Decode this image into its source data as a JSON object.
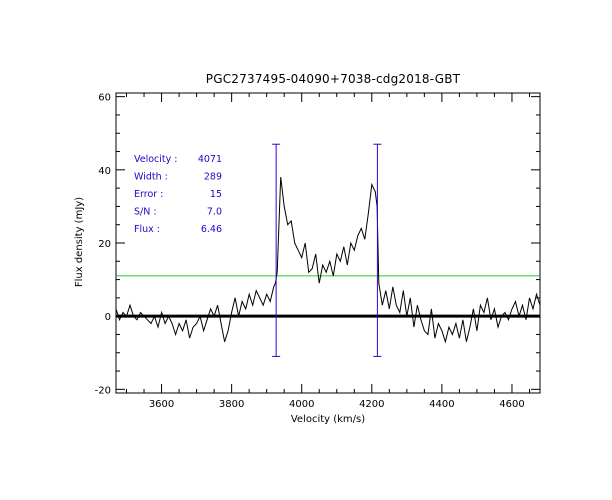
{
  "chart_data": {
    "type": "line",
    "title": "PGC2737495-04090+7038-cdg2018-GBT",
    "xlabel": "Velocity (km/s)",
    "ylabel": "Flux density (mJy)",
    "xlim": [
      3470,
      4680
    ],
    "ylim": [
      -21,
      61
    ],
    "xticks": [
      3600,
      3800,
      4000,
      4200,
      4400,
      4600
    ],
    "yticks": [
      -20,
      0,
      20,
      40,
      60
    ],
    "baseline": 0,
    "threshold_line": {
      "y": 11,
      "color": "#22cc22"
    },
    "markers": {
      "x": [
        3927,
        4216
      ],
      "y_top": 47,
      "y_bottom": -11,
      "color": "#3a00cc"
    },
    "annotations": [
      {
        "label": "Velocity :",
        "value": "4071"
      },
      {
        "label": "Width :",
        "value": "289"
      },
      {
        "label": "Error :",
        "value": "15"
      },
      {
        "label": "S/N :",
        "value": "7.0"
      },
      {
        "label": "Flux :",
        "value": "6.46"
      }
    ],
    "series": [
      {
        "name": "spectrum",
        "color": "#000000",
        "x": [
          3470,
          3480,
          3490,
          3500,
          3510,
          3520,
          3530,
          3540,
          3550,
          3560,
          3570,
          3580,
          3590,
          3600,
          3610,
          3620,
          3630,
          3640,
          3650,
          3660,
          3670,
          3680,
          3690,
          3700,
          3710,
          3720,
          3730,
          3740,
          3750,
          3760,
          3770,
          3780,
          3790,
          3800,
          3810,
          3820,
          3830,
          3840,
          3850,
          3860,
          3870,
          3880,
          3890,
          3900,
          3910,
          3920,
          3925,
          3930,
          3940,
          3950,
          3960,
          3970,
          3980,
          3990,
          4000,
          4010,
          4020,
          4030,
          4040,
          4050,
          4060,
          4070,
          4080,
          4090,
          4100,
          4110,
          4120,
          4130,
          4140,
          4150,
          4160,
          4170,
          4180,
          4190,
          4200,
          4210,
          4215,
          4220,
          4230,
          4240,
          4250,
          4260,
          4270,
          4280,
          4290,
          4300,
          4310,
          4320,
          4330,
          4340,
          4350,
          4360,
          4370,
          4380,
          4390,
          4400,
          4410,
          4420,
          4430,
          4440,
          4450,
          4460,
          4470,
          4480,
          4490,
          4500,
          4510,
          4520,
          4530,
          4540,
          4550,
          4560,
          4570,
          4580,
          4590,
          4600,
          4610,
          4620,
          4630,
          4640,
          4650,
          4660,
          4670,
          4680
        ],
        "y": [
          2,
          -1,
          1,
          0,
          3,
          0,
          -1,
          1,
          0,
          -1,
          -2,
          0,
          -3,
          1,
          -2,
          0,
          -2,
          -5,
          -2,
          -4,
          -1,
          -6,
          -3,
          -2,
          0,
          -4,
          -1,
          2,
          0,
          3,
          -2,
          -7,
          -4,
          1,
          5,
          0,
          4,
          2,
          6,
          3,
          7,
          5,
          3,
          6,
          4,
          8,
          9,
          12,
          38,
          30,
          25,
          26,
          20,
          18,
          16,
          20,
          12,
          13,
          17,
          9,
          14,
          12,
          15,
          11,
          17,
          15,
          19,
          14,
          20,
          18,
          22,
          24,
          21,
          28,
          36,
          34,
          30,
          9,
          3,
          7,
          2,
          8,
          3,
          1,
          7,
          0,
          5,
          -3,
          3,
          -1,
          -4,
          -5,
          2,
          -6,
          -2,
          -4,
          -7,
          -3,
          -5,
          -2,
          -6,
          -1,
          -7,
          -3,
          2,
          -4,
          3,
          1,
          5,
          -1,
          2,
          -3,
          0,
          1,
          -1,
          2,
          4,
          0,
          3,
          -1,
          5,
          2,
          6,
          3
        ]
      }
    ]
  }
}
